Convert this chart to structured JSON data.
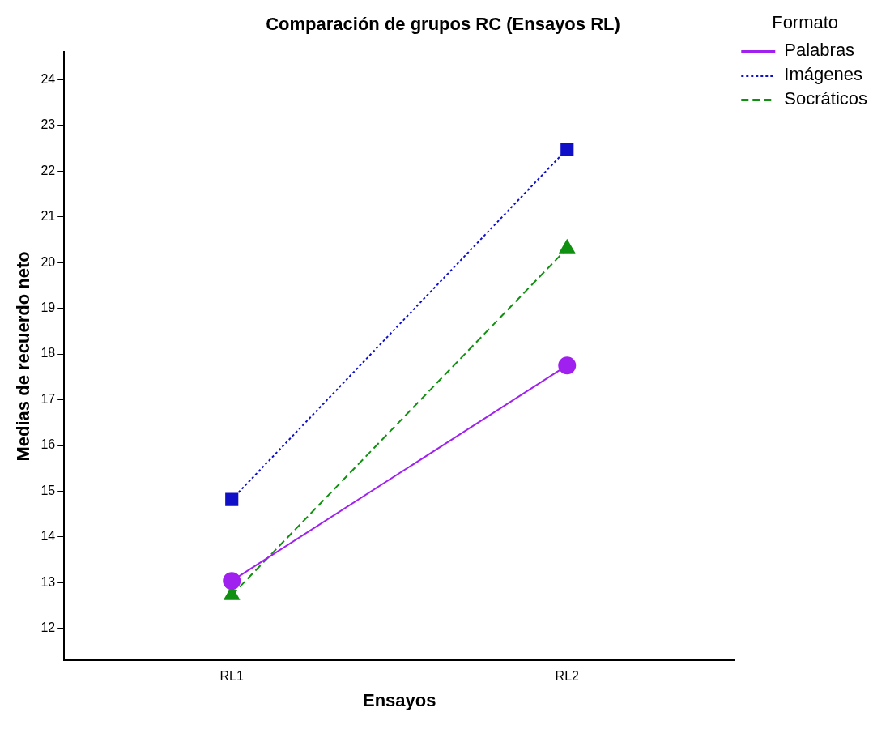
{
  "chart_data": {
    "type": "line",
    "title": "Comparación de grupos RC (Ensayos RL)",
    "xlabel": "Ensayos",
    "ylabel": "Medias de recuerdo neto",
    "categories": [
      "RL1",
      "RL2"
    ],
    "series": [
      {
        "name": "Palabras",
        "color": "#a020f0",
        "values": [
          13.04,
          17.75
        ],
        "marker": "circle",
        "line_style": "solid"
      },
      {
        "name": "Imágenes",
        "color": "#1010c8",
        "values": [
          14.82,
          22.48
        ],
        "marker": "square",
        "line_style": "dotted"
      },
      {
        "name": "Socráticos",
        "color": "#109010",
        "values": [
          12.73,
          20.31
        ],
        "marker": "triangle",
        "line_style": "dashed"
      }
    ],
    "ylim": [
      11.3,
      24.6
    ],
    "yticks": [
      12,
      13,
      14,
      15,
      16,
      17,
      18,
      19,
      20,
      21,
      22,
      23,
      24
    ],
    "grid": false,
    "legend": "right",
    "legend_title": "Formato"
  }
}
